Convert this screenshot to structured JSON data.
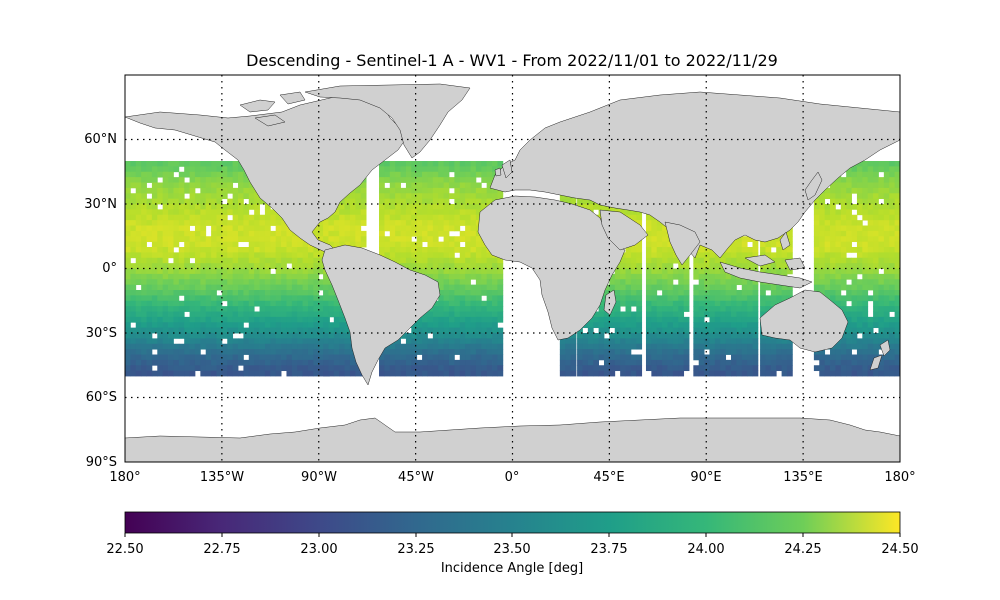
{
  "title": "Descending - Sentinel-1 A - WV1 - From 2022/11/01 to 2022/11/29",
  "map": {
    "projection": "PlateCarree",
    "land_color": "#d0d0d0",
    "coastline_color": "#222222",
    "gridlines": "dotted"
  },
  "x_ticks": [
    {
      "value": -180,
      "label": "180°"
    },
    {
      "value": -135,
      "label": "135°W"
    },
    {
      "value": -90,
      "label": "90°W"
    },
    {
      "value": -45,
      "label": "45°W"
    },
    {
      "value": 0,
      "label": "0°"
    },
    {
      "value": 45,
      "label": "45°E"
    },
    {
      "value": 90,
      "label": "90°E"
    },
    {
      "value": 135,
      "label": "135°E"
    },
    {
      "value": 180,
      "label": "180°"
    }
  ],
  "y_ticks": [
    {
      "value": 60,
      "label": "60°N"
    },
    {
      "value": 30,
      "label": "30°N"
    },
    {
      "value": 0,
      "label": "0°"
    },
    {
      "value": -30,
      "label": "30°S"
    },
    {
      "value": -60,
      "label": "60°S"
    },
    {
      "value": -90,
      "label": "90°S"
    }
  ],
  "colorbar": {
    "label": "Incidence Angle [deg]",
    "colormap": "viridis",
    "min": 22.5,
    "max": 24.5,
    "ticks": [
      {
        "value": 22.5,
        "label": "22.50"
      },
      {
        "value": 22.75,
        "label": "22.75"
      },
      {
        "value": 23.0,
        "label": "23.00"
      },
      {
        "value": 23.25,
        "label": "23.25"
      },
      {
        "value": 23.5,
        "label": "23.50"
      },
      {
        "value": 23.75,
        "label": "23.75"
      },
      {
        "value": 24.0,
        "label": "24.00"
      },
      {
        "value": 24.25,
        "label": "24.25"
      },
      {
        "value": 24.5,
        "label": "24.50"
      }
    ]
  },
  "chart_data": {
    "type": "heatmap",
    "x_range_deg": [
      -180,
      180
    ],
    "y_range_deg": [
      -90,
      90
    ],
    "data_lat_range_deg": [
      -50,
      50
    ],
    "cell_size_deg": 2.5,
    "value_by_latitude": [
      {
        "lat": 48,
        "value": 24.0
      },
      {
        "lat": 40,
        "value": 24.15
      },
      {
        "lat": 30,
        "value": 24.25
      },
      {
        "lat": 20,
        "value": 24.35
      },
      {
        "lat": 10,
        "value": 24.35
      },
      {
        "lat": 0,
        "value": 24.2
      },
      {
        "lat": -10,
        "value": 24.0
      },
      {
        "lat": -20,
        "value": 23.75
      },
      {
        "lat": -30,
        "value": 23.5
      },
      {
        "lat": -40,
        "value": 23.2
      },
      {
        "lat": -48,
        "value": 23.05
      }
    ],
    "swath_bands_lon_deg": [
      [
        -180,
        -85
      ],
      [
        -88,
        -70
      ],
      [
        -62,
        -5
      ],
      [
        22,
        28
      ],
      [
        30,
        45
      ],
      [
        45,
        58
      ],
      [
        62,
        82
      ],
      [
        84,
        112
      ],
      [
        115,
        130
      ],
      [
        140,
        180
      ]
    ]
  }
}
